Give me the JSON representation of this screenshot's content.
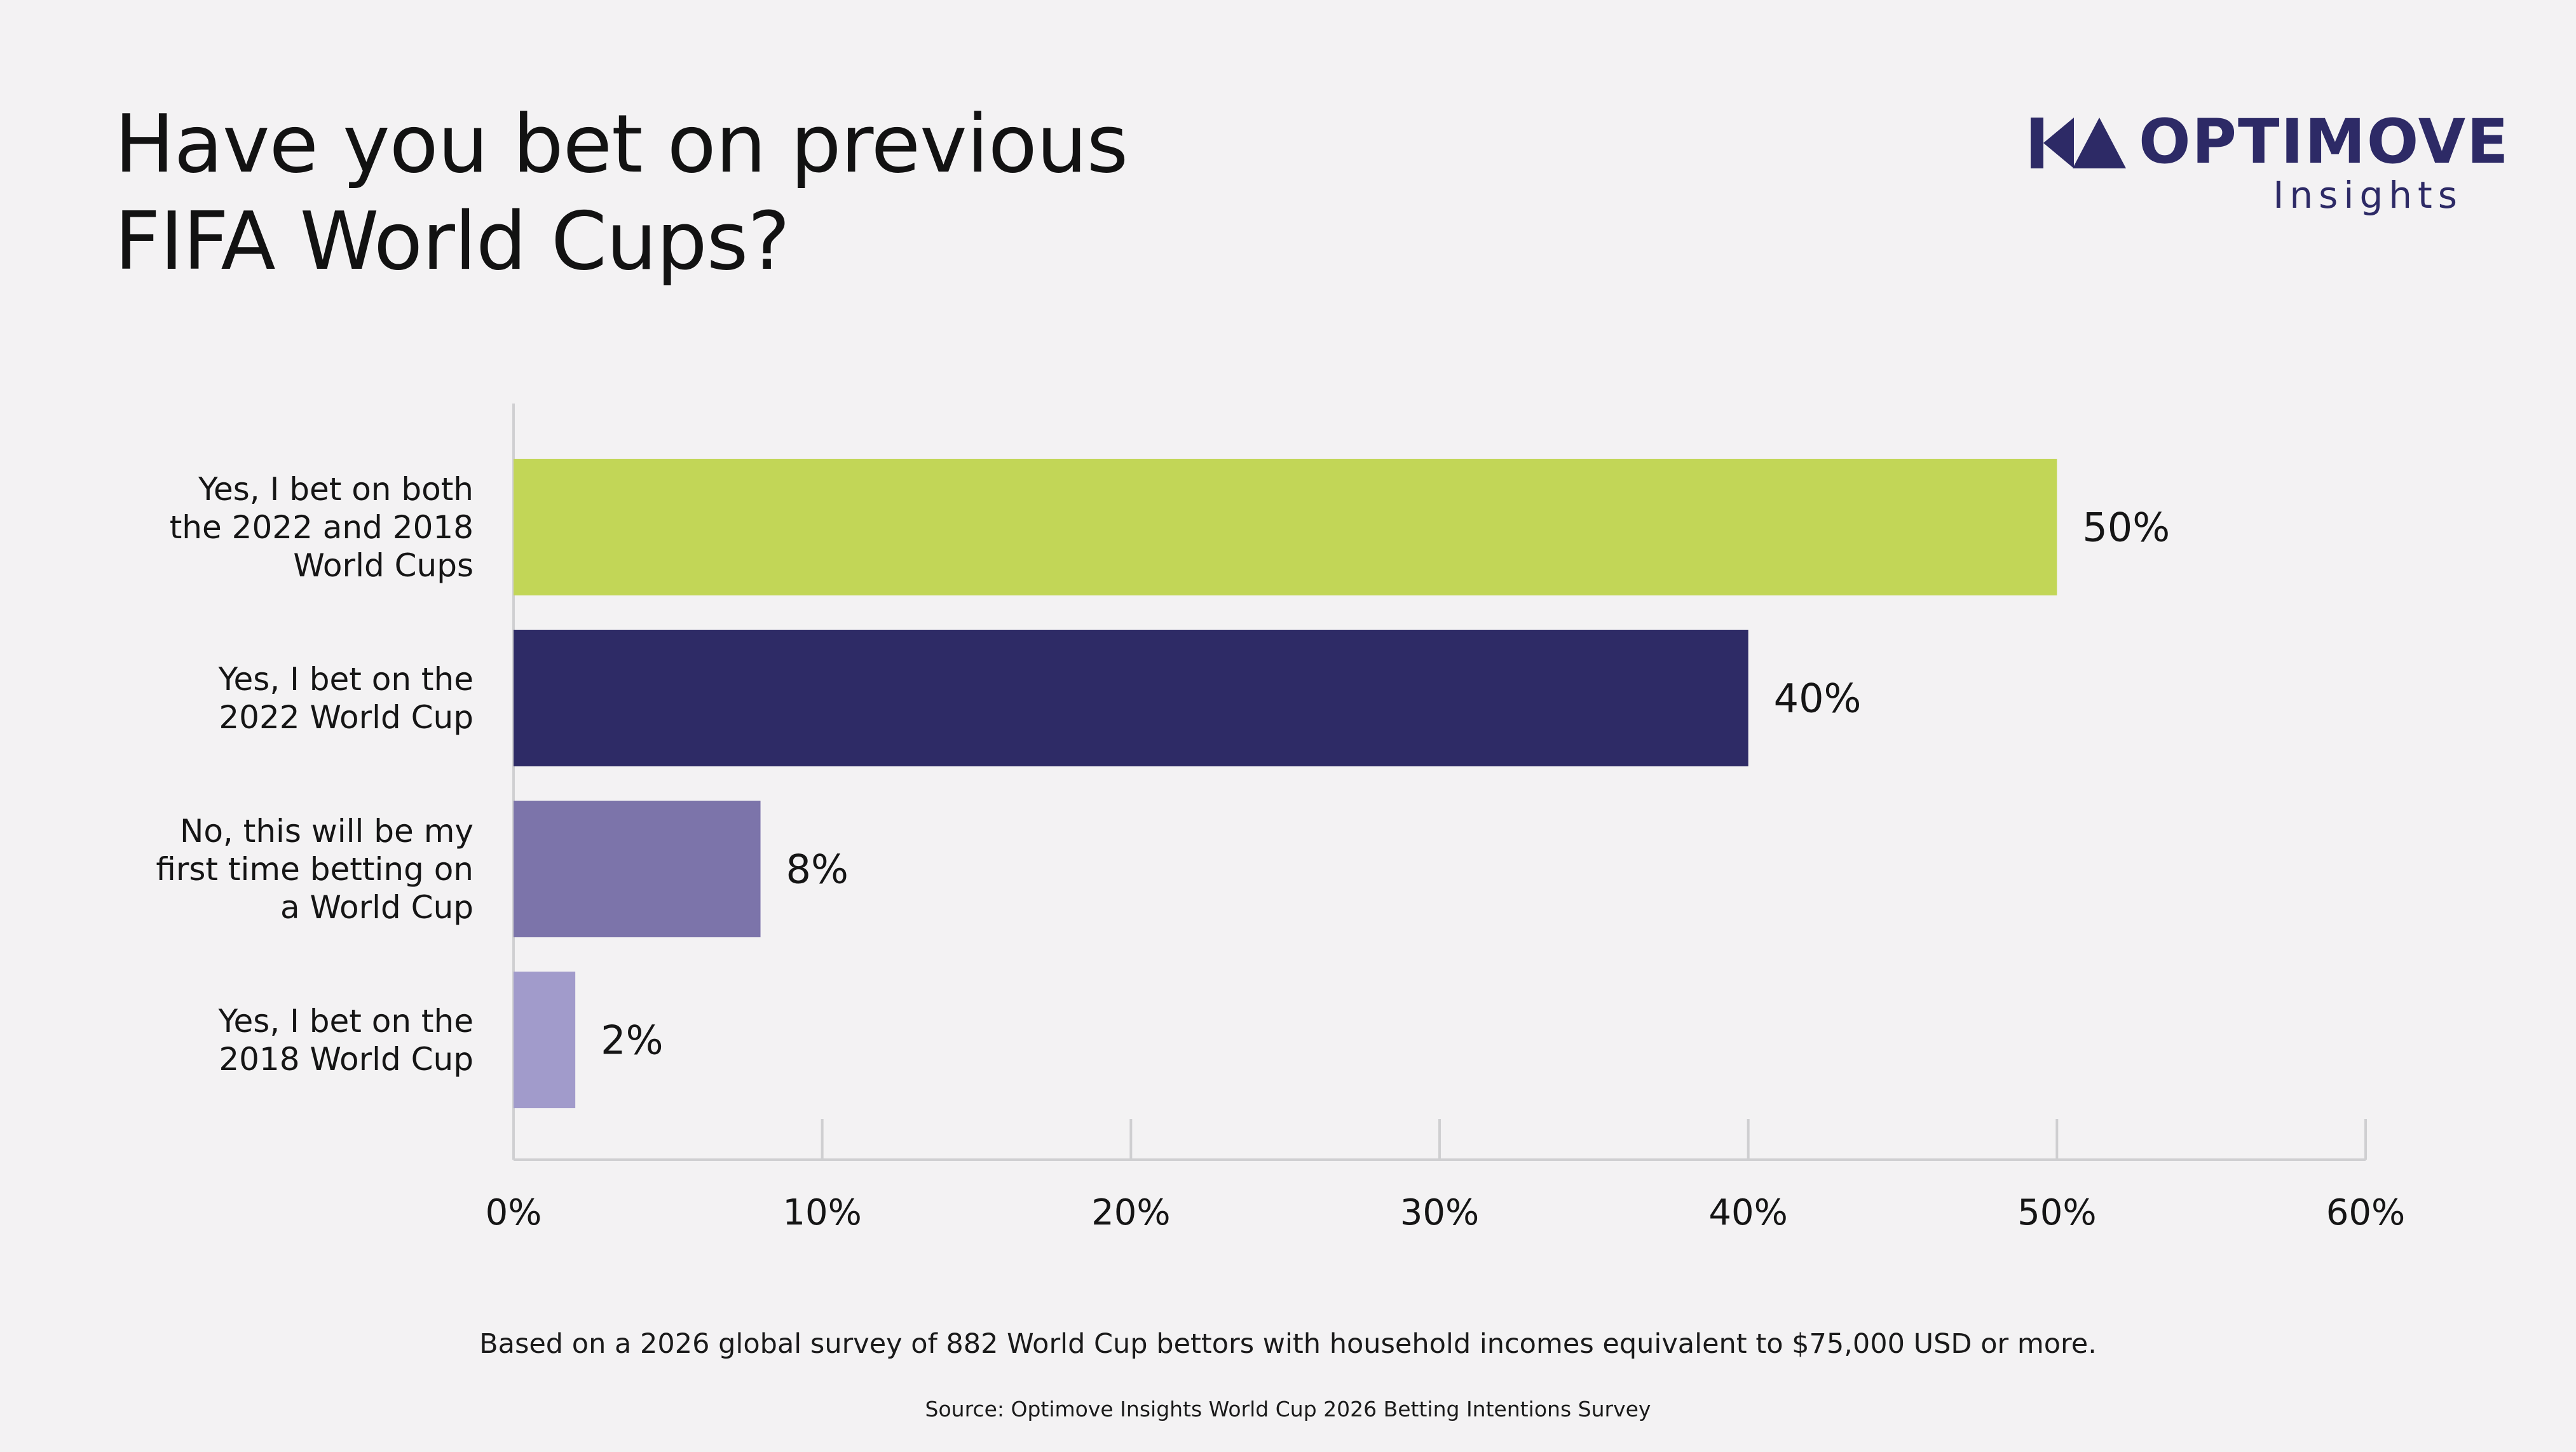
{
  "title_lines": [
    "Have you bet on previous",
    "FIFA World Cups?"
  ],
  "logo": {
    "wordmark": "OPTIMOVE",
    "subtitle": "Insights",
    "color": "#2d2a66"
  },
  "chart_data": {
    "type": "bar",
    "orientation": "horizontal",
    "title": "Have you bet on previous FIFA World Cups?",
    "categories": [
      [
        "Yes, I bet on both",
        "the 2022 and 2018",
        "World Cups"
      ],
      [
        "Yes, I bet on the",
        "2022 World Cup"
      ],
      [
        "No, this will be my",
        "first time betting on",
        "a World Cup"
      ],
      [
        "Yes, I bet on the",
        "2018 World Cup"
      ]
    ],
    "values": [
      50,
      40,
      8,
      2
    ],
    "value_labels": [
      "50%",
      "40%",
      "8%",
      "2%"
    ],
    "colors": [
      "#c2d657",
      "#2e2b66",
      "#7c74aa",
      "#a19bcb"
    ],
    "xlim": [
      0,
      60
    ],
    "ticks": [
      0,
      10,
      20,
      30,
      40,
      50,
      60
    ],
    "tick_labels": [
      "0%",
      "10%",
      "20%",
      "30%",
      "40%",
      "50%",
      "60%"
    ],
    "xlabel": "",
    "ylabel": "",
    "grid": false,
    "legend": "none"
  },
  "footnote": "Based on a 2026 global survey of 882 World Cup bettors with household incomes equivalent to $75,000 USD or more.",
  "source": "Source: Optimove Insights World Cup 2026 Betting Intentions Survey"
}
